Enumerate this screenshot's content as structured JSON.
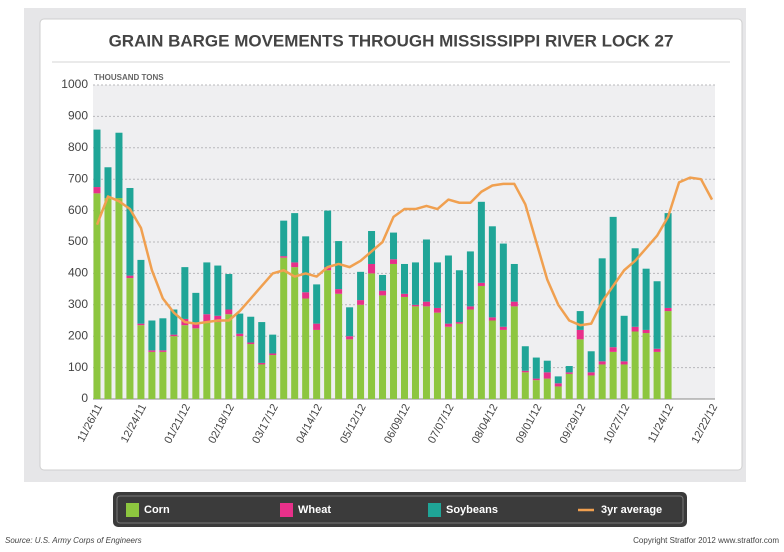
{
  "chart_data": {
    "type": "bar",
    "stacked": true,
    "title": "GRAIN BARGE MOVEMENTS THROUGH MISSISSIPPI RIVER LOCK 27",
    "y_axis_label": "THOUSAND TONS",
    "categories": [
      "11/26/11",
      null,
      null,
      null,
      "12/24/11",
      null,
      null,
      null,
      "01/21/12",
      null,
      null,
      null,
      "02/18/12",
      null,
      null,
      null,
      "03/17/12",
      null,
      null,
      null,
      "04/14/12",
      null,
      null,
      null,
      "05/12/12",
      null,
      null,
      null,
      "06/09/12",
      null,
      null,
      null,
      "07/07/12",
      null,
      null,
      null,
      "08/04/12",
      null,
      null,
      null,
      "09/01/12",
      null,
      null,
      null,
      "09/29/12",
      null,
      null,
      null,
      "10/27/12",
      null,
      null,
      null,
      "11/24/12",
      null,
      null,
      null,
      "12/22/12"
    ],
    "ylim": [
      0,
      1000
    ],
    "yticks": [
      0,
      100,
      200,
      300,
      400,
      500,
      600,
      700,
      800,
      900,
      1000
    ],
    "grid": true,
    "series": [
      {
        "name": "Corn",
        "color": "#8dc63f",
        "values": [
          655,
          640,
          640,
          385,
          235,
          150,
          150,
          200,
          235,
          225,
          245,
          245,
          270,
          200,
          175,
          110,
          140,
          450,
          420,
          320,
          220,
          410,
          335,
          190,
          300,
          400,
          330,
          430,
          325,
          295,
          295,
          275,
          230,
          240,
          285,
          360,
          250,
          220,
          295,
          85,
          60,
          65,
          40,
          80,
          190,
          75,
          110,
          150,
          110,
          215,
          210,
          150,
          280,
          null,
          null,
          null,
          null
        ]
      },
      {
        "name": "Wheat",
        "color": "#e8308a",
        "values": [
          20,
          0,
          0,
          8,
          5,
          5,
          5,
          5,
          20,
          15,
          25,
          20,
          15,
          8,
          5,
          5,
          5,
          5,
          15,
          20,
          20,
          10,
          15,
          10,
          15,
          30,
          15,
          15,
          10,
          5,
          15,
          15,
          10,
          5,
          10,
          10,
          10,
          10,
          15,
          5,
          5,
          20,
          10,
          5,
          30,
          10,
          10,
          15,
          10,
          15,
          10,
          10,
          10,
          null,
          null,
          null,
          null
        ]
      },
      {
        "name": "Soybeans",
        "color": "#1fa597",
        "values": [
          183,
          98,
          208,
          279,
          203,
          95,
          102,
          80,
          165,
          98,
          165,
          160,
          113,
          64,
          82,
          130,
          60,
          113,
          157,
          178,
          125,
          180,
          153,
          92,
          90,
          105,
          50,
          85,
          95,
          135,
          198,
          145,
          217,
          165,
          175,
          258,
          290,
          265,
          120,
          78,
          67,
          37,
          22,
          20,
          60,
          67,
          328,
          415,
          145,
          250,
          195,
          215,
          302,
          null,
          null,
          null,
          null
        ]
      },
      {
        "name": "3yr average",
        "type": "line",
        "color": "#f0a050",
        "values": [
          555,
          645,
          630,
          605,
          545,
          410,
          320,
          275,
          245,
          240,
          245,
          250,
          250,
          280,
          320,
          360,
          400,
          410,
          390,
          400,
          390,
          420,
          430,
          420,
          440,
          470,
          500,
          580,
          605,
          605,
          615,
          605,
          635,
          625,
          625,
          660,
          680,
          685,
          685,
          620,
          500,
          380,
          300,
          250,
          235,
          240,
          310,
          360,
          410,
          440,
          480,
          520,
          580,
          690,
          705,
          700,
          635
        ]
      }
    ]
  },
  "footer": {
    "source": "Source: U.S. Army Corps of Engineers",
    "copyright": "Copyright Stratfor 2012   www.stratfor.com"
  }
}
